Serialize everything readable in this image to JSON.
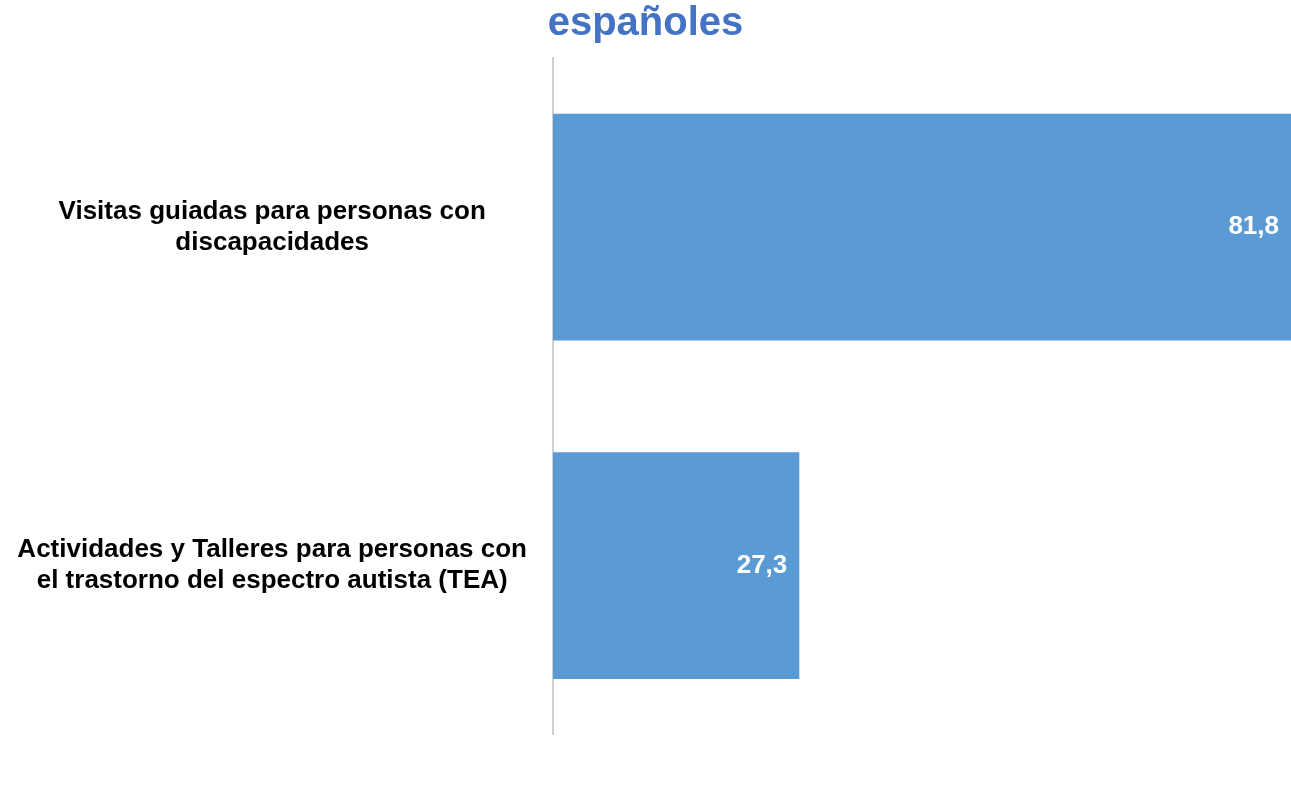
{
  "chart_data": {
    "type": "bar",
    "orientation": "horizontal",
    "title": "españoles",
    "categories": [
      "Visitas guiadas para personas con discapacidades",
      "Actividades y Talleres para personas con el trastorno del espectro autista (TEA)"
    ],
    "values": [
      81.8,
      27.3
    ],
    "value_labels": [
      "81,8",
      "27,3"
    ],
    "color": "#5b9bd5",
    "xlim": [
      0,
      81.8
    ]
  }
}
